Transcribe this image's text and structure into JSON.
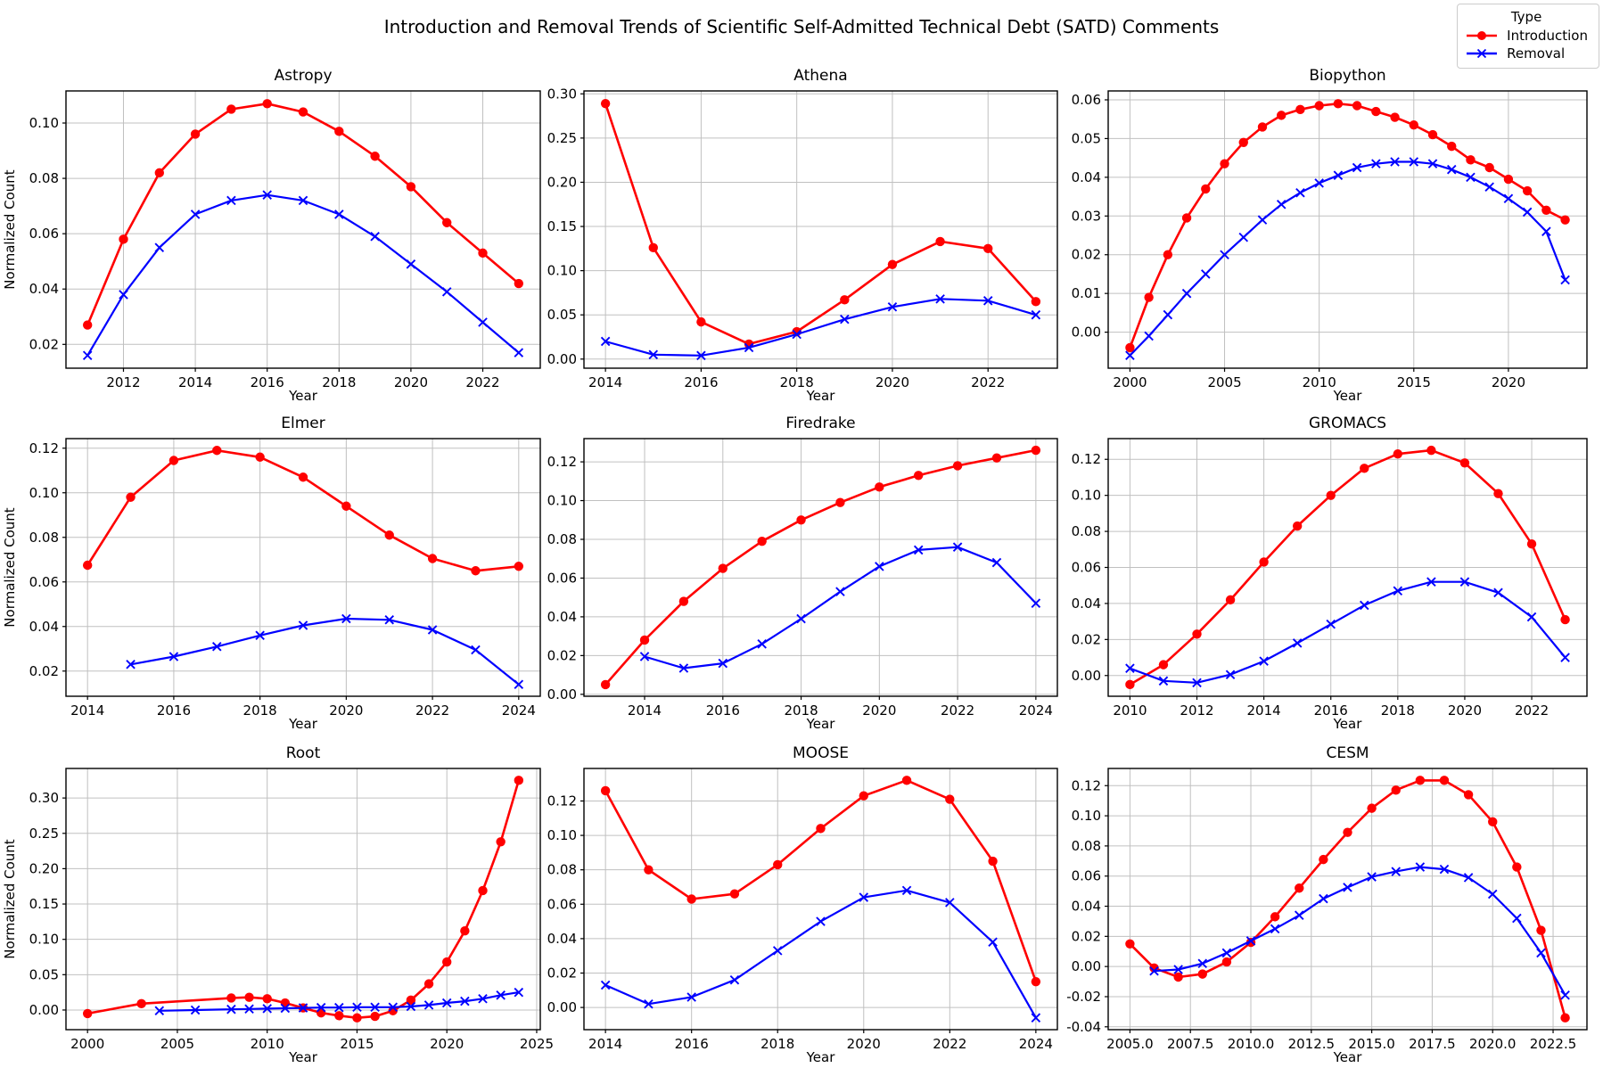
{
  "figure": {
    "suptitle": "Introduction and Removal Trends of Scientific Self-Admitted Technical Debt (SATD) Comments",
    "xlabel": "Year",
    "ylabel": "Normalized Count",
    "grid": true,
    "background": "#ffffff",
    "colors": {
      "introduction": "#ff0000",
      "removal": "#0000ff",
      "grid": "#c0c0c0",
      "spine": "#000000",
      "legend_border": "#cccccc"
    }
  },
  "legend": {
    "title": "Type",
    "position": "figure-top-right",
    "entries": [
      {
        "label": "Introduction",
        "series": "introduction",
        "marker": "circle"
      },
      {
        "label": "Removal",
        "series": "removal",
        "marker": "x"
      }
    ]
  },
  "chart_data": [
    {
      "type": "line",
      "title": "Astropy",
      "xlabel": "Year",
      "ylabel": "Normalized Count",
      "xlim": [
        2010.4,
        2023.6
      ],
      "ylim": [
        0.0114,
        0.1116
      ],
      "xticks": [
        2012,
        2014,
        2016,
        2018,
        2020,
        2022
      ],
      "xtick_format": "int",
      "yticks": [
        0.02,
        0.04,
        0.06,
        0.08,
        0.1
      ],
      "series": [
        {
          "name": "Introduction",
          "marker": "circle",
          "color": "#ff0000",
          "x": [
            2011,
            2012,
            2013,
            2014,
            2015,
            2016,
            2017,
            2018,
            2019,
            2020,
            2021,
            2022,
            2023
          ],
          "y": [
            0.027,
            0.058,
            0.082,
            0.096,
            0.105,
            0.107,
            0.104,
            0.097,
            0.088,
            0.077,
            0.064,
            0.053,
            0.042
          ]
        },
        {
          "name": "Removal",
          "marker": "x",
          "color": "#0000ff",
          "x": [
            2011,
            2012,
            2013,
            2014,
            2015,
            2016,
            2017,
            2018,
            2019,
            2020,
            2021,
            2022,
            2023
          ],
          "y": [
            0.016,
            0.038,
            0.055,
            0.067,
            0.072,
            0.074,
            0.072,
            0.067,
            0.059,
            0.049,
            0.039,
            0.028,
            0.017
          ]
        }
      ]
    },
    {
      "type": "line",
      "title": "Athena",
      "xlabel": "Year",
      "ylabel": "",
      "xlim": [
        2013.55,
        2023.45
      ],
      "ylim": [
        -0.0103,
        0.3033
      ],
      "xticks": [
        2014,
        2016,
        2018,
        2020,
        2022
      ],
      "xtick_format": "int",
      "yticks": [
        0.0,
        0.05,
        0.1,
        0.15,
        0.2,
        0.25,
        0.3
      ],
      "series": [
        {
          "name": "Introduction",
          "marker": "circle",
          "color": "#ff0000",
          "x": [
            2014,
            2015,
            2016,
            2017,
            2018,
            2019,
            2020,
            2021,
            2022,
            2023
          ],
          "y": [
            0.289,
            0.126,
            0.042,
            0.017,
            0.031,
            0.067,
            0.107,
            0.133,
            0.125,
            0.065
          ]
        },
        {
          "name": "Removal",
          "marker": "x",
          "color": "#0000ff",
          "x": [
            2014,
            2015,
            2016,
            2017,
            2018,
            2019,
            2020,
            2021,
            2022,
            2023
          ],
          "y": [
            0.02,
            0.005,
            0.004,
            0.013,
            0.028,
            0.045,
            0.059,
            0.068,
            0.066,
            0.05
          ]
        }
      ]
    },
    {
      "type": "line",
      "title": "Biopython",
      "xlabel": "Year",
      "ylabel": "",
      "xlim": [
        1998.85,
        2024.15
      ],
      "ylim": [
        -0.0093,
        0.0623
      ],
      "xticks": [
        2000,
        2005,
        2010,
        2015,
        2020
      ],
      "xtick_format": "int",
      "yticks": [
        0.0,
        0.01,
        0.02,
        0.03,
        0.04,
        0.05,
        0.06
      ],
      "series": [
        {
          "name": "Introduction",
          "marker": "circle",
          "color": "#ff0000",
          "x": [
            2000,
            2001,
            2002,
            2003,
            2004,
            2005,
            2006,
            2007,
            2008,
            2009,
            2010,
            2011,
            2012,
            2013,
            2014,
            2015,
            2016,
            2017,
            2018,
            2019,
            2020,
            2021,
            2022,
            2023
          ],
          "y": [
            -0.004,
            0.009,
            0.02,
            0.0295,
            0.037,
            0.0435,
            0.049,
            0.053,
            0.056,
            0.0575,
            0.0585,
            0.059,
            0.0585,
            0.057,
            0.0555,
            0.0535,
            0.051,
            0.048,
            0.0445,
            0.0425,
            0.0395,
            0.0365,
            0.0315,
            0.029
          ]
        },
        {
          "name": "Removal",
          "marker": "x",
          "color": "#0000ff",
          "x": [
            2000,
            2001,
            2002,
            2003,
            2004,
            2005,
            2006,
            2007,
            2008,
            2009,
            2010,
            2011,
            2012,
            2013,
            2014,
            2015,
            2016,
            2017,
            2018,
            2019,
            2020,
            2021,
            2022,
            2023
          ],
          "y": [
            -0.006,
            -0.001,
            0.0045,
            0.01,
            0.015,
            0.02,
            0.0245,
            0.029,
            0.033,
            0.036,
            0.0385,
            0.0405,
            0.0425,
            0.0435,
            0.044,
            0.044,
            0.0435,
            0.042,
            0.04,
            0.0375,
            0.0345,
            0.031,
            0.026,
            0.0135
          ]
        }
      ]
    },
    {
      "type": "line",
      "title": "Elmer",
      "xlabel": "Year",
      "ylabel": "Normalized Count",
      "xlim": [
        2013.5,
        2024.5
      ],
      "ylim": [
        0.0087,
        0.1243
      ],
      "xticks": [
        2014,
        2016,
        2018,
        2020,
        2022,
        2024
      ],
      "xtick_format": "int",
      "yticks": [
        0.02,
        0.04,
        0.06,
        0.08,
        0.1,
        0.12
      ],
      "series": [
        {
          "name": "Introduction",
          "marker": "circle",
          "color": "#ff0000",
          "x": [
            2014,
            2015,
            2016,
            2017,
            2018,
            2019,
            2020,
            2021,
            2022,
            2023,
            2024
          ],
          "y": [
            0.0675,
            0.098,
            0.1145,
            0.119,
            0.116,
            0.107,
            0.094,
            0.081,
            0.0705,
            0.065,
            0.067
          ]
        },
        {
          "name": "Removal",
          "marker": "x",
          "color": "#0000ff",
          "x": [
            2015,
            2016,
            2017,
            2018,
            2019,
            2020,
            2021,
            2022,
            2023,
            2024
          ],
          "y": [
            0.023,
            0.0265,
            0.031,
            0.036,
            0.0405,
            0.0435,
            0.043,
            0.0385,
            0.0295,
            0.014
          ]
        }
      ]
    },
    {
      "type": "line",
      "title": "Firedrake",
      "xlabel": "Year",
      "ylabel": "",
      "xlim": [
        2012.45,
        2024.55
      ],
      "ylim": [
        -0.001,
        0.132
      ],
      "xticks": [
        2014,
        2016,
        2018,
        2020,
        2022,
        2024
      ],
      "xtick_format": "int",
      "yticks": [
        0.0,
        0.02,
        0.04,
        0.06,
        0.08,
        0.1,
        0.12
      ],
      "series": [
        {
          "name": "Introduction",
          "marker": "circle",
          "color": "#ff0000",
          "x": [
            2013,
            2014,
            2015,
            2016,
            2017,
            2018,
            2019,
            2020,
            2021,
            2022,
            2023,
            2024
          ],
          "y": [
            0.005,
            0.028,
            0.048,
            0.065,
            0.079,
            0.09,
            0.099,
            0.107,
            0.113,
            0.118,
            0.122,
            0.126
          ]
        },
        {
          "name": "Removal",
          "marker": "x",
          "color": "#0000ff",
          "x": [
            2014,
            2015,
            2016,
            2017,
            2018,
            2019,
            2020,
            2021,
            2022,
            2023,
            2024
          ],
          "y": [
            0.0195,
            0.0135,
            0.016,
            0.026,
            0.039,
            0.053,
            0.066,
            0.0745,
            0.076,
            0.068,
            0.047
          ]
        }
      ]
    },
    {
      "type": "line",
      "title": "GROMACS",
      "xlabel": "Year",
      "ylabel": "",
      "xlim": [
        2009.35,
        2023.65
      ],
      "ylim": [
        -0.0115,
        0.1315
      ],
      "xticks": [
        2010,
        2012,
        2014,
        2016,
        2018,
        2020,
        2022
      ],
      "xtick_format": "int",
      "yticks": [
        0.0,
        0.02,
        0.04,
        0.06,
        0.08,
        0.1,
        0.12
      ],
      "series": [
        {
          "name": "Introduction",
          "marker": "circle",
          "color": "#ff0000",
          "x": [
            2010,
            2011,
            2012,
            2013,
            2014,
            2015,
            2016,
            2017,
            2018,
            2019,
            2020,
            2021,
            2022,
            2023
          ],
          "y": [
            -0.005,
            0.006,
            0.023,
            0.042,
            0.063,
            0.083,
            0.1,
            0.115,
            0.123,
            0.125,
            0.118,
            0.101,
            0.073,
            0.031
          ]
        },
        {
          "name": "Removal",
          "marker": "x",
          "color": "#0000ff",
          "x": [
            2010,
            2011,
            2012,
            2013,
            2014,
            2015,
            2016,
            2017,
            2018,
            2019,
            2020,
            2021,
            2022,
            2023
          ],
          "y": [
            0.004,
            -0.003,
            -0.004,
            0.0005,
            0.008,
            0.018,
            0.0285,
            0.039,
            0.047,
            0.052,
            0.052,
            0.046,
            0.0325,
            0.01
          ]
        }
      ]
    },
    {
      "type": "line",
      "title": "Root",
      "xlabel": "Year",
      "ylabel": "Normalized Count",
      "xlim": [
        1998.8,
        2025.2
      ],
      "ylim": [
        -0.0278,
        0.3418
      ],
      "xticks": [
        2000,
        2005,
        2010,
        2015,
        2020,
        2025
      ],
      "xtick_format": "int",
      "yticks": [
        0.0,
        0.05,
        0.1,
        0.15,
        0.2,
        0.25,
        0.3
      ],
      "series": [
        {
          "name": "Introduction",
          "marker": "circle",
          "color": "#ff0000",
          "x": [
            2000,
            2003,
            2008,
            2009,
            2010,
            2011,
            2012,
            2013,
            2014,
            2015,
            2016,
            2017,
            2018,
            2019,
            2020,
            2021,
            2022,
            2023,
            2024
          ],
          "y": [
            -0.005,
            0.009,
            0.017,
            0.018,
            0.016,
            0.01,
            0.003,
            -0.004,
            -0.008,
            -0.011,
            -0.009,
            -0.001,
            0.014,
            0.037,
            0.068,
            0.112,
            0.169,
            0.238,
            0.325
          ]
        },
        {
          "name": "Removal",
          "marker": "x",
          "color": "#0000ff",
          "x": [
            2004,
            2006,
            2008,
            2009,
            2010,
            2011,
            2012,
            2013,
            2014,
            2015,
            2016,
            2017,
            2018,
            2019,
            2020,
            2021,
            2022,
            2023,
            2024
          ],
          "y": [
            -0.001,
            0.0,
            0.001,
            0.0015,
            0.002,
            0.0025,
            0.003,
            0.0035,
            0.0035,
            0.004,
            0.004,
            0.004,
            0.005,
            0.007,
            0.01,
            0.0125,
            0.016,
            0.021,
            0.025
          ]
        }
      ]
    },
    {
      "type": "line",
      "title": "MOOSE",
      "xlabel": "Year",
      "ylabel": "",
      "xlim": [
        2013.5,
        2024.5
      ],
      "ylim": [
        -0.0129,
        0.1389
      ],
      "xticks": [
        2014,
        2016,
        2018,
        2020,
        2022,
        2024
      ],
      "xtick_format": "int",
      "yticks": [
        0.0,
        0.02,
        0.04,
        0.06,
        0.08,
        0.1,
        0.12
      ],
      "series": [
        {
          "name": "Introduction",
          "marker": "circle",
          "color": "#ff0000",
          "x": [
            2014,
            2015,
            2016,
            2017,
            2018,
            2019,
            2020,
            2021,
            2022,
            2023,
            2024
          ],
          "y": [
            0.126,
            0.08,
            0.063,
            0.066,
            0.083,
            0.104,
            0.123,
            0.132,
            0.121,
            0.085,
            0.015
          ]
        },
        {
          "name": "Removal",
          "marker": "x",
          "color": "#0000ff",
          "x": [
            2014,
            2015,
            2016,
            2017,
            2018,
            2019,
            2020,
            2021,
            2022,
            2023,
            2024
          ],
          "y": [
            0.013,
            0.002,
            0.006,
            0.016,
            0.033,
            0.05,
            0.064,
            0.068,
            0.061,
            0.038,
            -0.006
          ]
        }
      ]
    },
    {
      "type": "line",
      "title": "CESM",
      "xlabel": "Year",
      "ylabel": "",
      "xlim": [
        2004.1,
        2023.9
      ],
      "ylim": [
        -0.0419,
        0.1314
      ],
      "xticks": [
        2005.0,
        2007.5,
        2010.0,
        2012.5,
        2015.0,
        2017.5,
        2020.0,
        2022.5
      ],
      "xtick_format": "1f",
      "yticks": [
        -0.04,
        -0.02,
        0.0,
        0.02,
        0.04,
        0.06,
        0.08,
        0.1,
        0.12
      ],
      "series": [
        {
          "name": "Introduction",
          "marker": "circle",
          "color": "#ff0000",
          "x": [
            2005,
            2006,
            2007,
            2008,
            2009,
            2010,
            2011,
            2012,
            2013,
            2014,
            2015,
            2016,
            2017,
            2018,
            2019,
            2020,
            2021,
            2022,
            2023
          ],
          "y": [
            0.015,
            -0.001,
            -0.007,
            -0.005,
            0.003,
            0.016,
            0.033,
            0.052,
            0.071,
            0.089,
            0.105,
            0.117,
            0.1235,
            0.1235,
            0.114,
            0.096,
            0.066,
            0.024,
            -0.034
          ]
        },
        {
          "name": "Removal",
          "marker": "x",
          "color": "#0000ff",
          "x": [
            2006,
            2007,
            2008,
            2009,
            2010,
            2011,
            2012,
            2013,
            2014,
            2015,
            2016,
            2017,
            2018,
            2019,
            2020,
            2021,
            2022,
            2023
          ],
          "y": [
            -0.003,
            -0.002,
            0.002,
            0.009,
            0.017,
            0.025,
            0.034,
            0.045,
            0.0525,
            0.0595,
            0.063,
            0.066,
            0.0645,
            0.059,
            0.048,
            0.032,
            0.009,
            -0.019
          ]
        }
      ]
    }
  ]
}
